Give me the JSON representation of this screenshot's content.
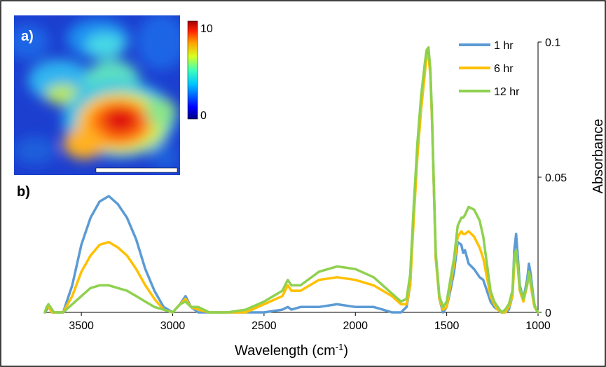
{
  "panel_labels": {
    "a": "a)",
    "b": "b)"
  },
  "colorbar": {
    "max_label": "10",
    "min_label": "0"
  },
  "chart_data": {
    "type": "line",
    "xlabel": "Wavelength (cm",
    "xlabel_sup": "-1",
    "xlabel_close": ")",
    "ylabel": "Absorbance",
    "xlim": [
      3700,
      1000
    ],
    "ylim": [
      0,
      0.1
    ],
    "x_ticks": [
      3500,
      3000,
      2500,
      2000,
      1500,
      1000
    ],
    "x_tick_labels": [
      "3500",
      "3000",
      "2500",
      "2000",
      "1500",
      "1000"
    ],
    "y_ticks": [
      0,
      0.05,
      0.1
    ],
    "y_tick_labels": [
      "0",
      "0.05",
      "0.1"
    ],
    "legend_position": "top-right",
    "colors": {
      "1 hr": "#5b9bd5",
      "6 hr": "#ffc000",
      "12 hr": "#8fd14f"
    },
    "series": [
      {
        "name": "1 hr",
        "x": [
          3700,
          3690,
          3680,
          3670,
          3660,
          3650,
          3600,
          3550,
          3500,
          3450,
          3400,
          3350,
          3300,
          3250,
          3200,
          3150,
          3100,
          3050,
          3000,
          2960,
          2930,
          2900,
          2860,
          2800,
          2700,
          2600,
          2500,
          2400,
          2370,
          2350,
          2300,
          2200,
          2100,
          2000,
          1900,
          1850,
          1800,
          1750,
          1720,
          1700,
          1680,
          1660,
          1640,
          1620,
          1610,
          1600,
          1590,
          1580,
          1570,
          1560,
          1540,
          1520,
          1500,
          1480,
          1460,
          1440,
          1420,
          1410,
          1400,
          1380,
          1350,
          1320,
          1300,
          1280,
          1260,
          1240,
          1220,
          1200,
          1180,
          1160,
          1140,
          1130,
          1120,
          1110,
          1100,
          1080,
          1060,
          1050,
          1040,
          1030,
          1020,
          1010,
          1000
        ],
        "y": [
          0.0,
          0.001,
          0.002,
          0.001,
          0.0,
          0.0,
          0.0,
          0.01,
          0.025,
          0.035,
          0.041,
          0.043,
          0.04,
          0.035,
          0.027,
          0.016,
          0.008,
          0.002,
          0.0,
          0.003,
          0.006,
          0.002,
          0.0,
          0.0,
          0.0,
          0.0,
          0.0,
          0.001,
          0.002,
          0.001,
          0.002,
          0.002,
          0.003,
          0.002,
          0.002,
          0.001,
          0.0,
          0.0,
          0.002,
          0.01,
          0.04,
          0.06,
          0.078,
          0.09,
          0.096,
          0.097,
          0.09,
          0.07,
          0.045,
          0.02,
          0.005,
          0.0,
          0.002,
          0.008,
          0.015,
          0.026,
          0.025,
          0.022,
          0.023,
          0.018,
          0.016,
          0.013,
          0.012,
          0.008,
          0.004,
          0.002,
          0.001,
          0.0,
          0.0,
          0.001,
          0.006,
          0.023,
          0.029,
          0.02,
          0.01,
          0.005,
          0.012,
          0.018,
          0.014,
          0.008,
          0.003,
          0.001,
          0.0
        ]
      },
      {
        "name": "6 hr",
        "x": [
          3700,
          3690,
          3680,
          3670,
          3660,
          3650,
          3600,
          3550,
          3500,
          3450,
          3400,
          3350,
          3300,
          3250,
          3200,
          3150,
          3100,
          3050,
          3000,
          2960,
          2930,
          2900,
          2860,
          2800,
          2700,
          2600,
          2500,
          2400,
          2370,
          2350,
          2300,
          2200,
          2100,
          2000,
          1900,
          1850,
          1800,
          1750,
          1720,
          1700,
          1680,
          1660,
          1640,
          1620,
          1610,
          1600,
          1590,
          1580,
          1570,
          1560,
          1540,
          1520,
          1500,
          1480,
          1460,
          1440,
          1420,
          1410,
          1400,
          1380,
          1350,
          1320,
          1300,
          1280,
          1260,
          1240,
          1220,
          1200,
          1180,
          1160,
          1140,
          1130,
          1120,
          1110,
          1100,
          1080,
          1060,
          1050,
          1040,
          1030,
          1020,
          1010,
          1000
        ],
        "y": [
          0.0,
          0.002,
          0.002,
          0.001,
          0.0,
          0.0,
          0.0,
          0.006,
          0.015,
          0.021,
          0.025,
          0.026,
          0.024,
          0.021,
          0.016,
          0.01,
          0.005,
          0.001,
          0.0,
          0.003,
          0.005,
          0.002,
          0.001,
          0.0,
          0.0,
          0.0,
          0.003,
          0.006,
          0.01,
          0.008,
          0.008,
          0.012,
          0.013,
          0.012,
          0.01,
          0.008,
          0.006,
          0.003,
          0.003,
          0.01,
          0.035,
          0.058,
          0.075,
          0.088,
          0.095,
          0.095,
          0.088,
          0.07,
          0.045,
          0.02,
          0.005,
          0.001,
          0.002,
          0.01,
          0.018,
          0.028,
          0.03,
          0.029,
          0.029,
          0.03,
          0.028,
          0.024,
          0.02,
          0.013,
          0.006,
          0.003,
          0.001,
          0.0,
          0.0,
          0.002,
          0.006,
          0.018,
          0.022,
          0.016,
          0.008,
          0.004,
          0.01,
          0.014,
          0.01,
          0.006,
          0.002,
          0.001,
          0.0
        ]
      },
      {
        "name": "12 hr",
        "x": [
          3700,
          3690,
          3680,
          3670,
          3660,
          3650,
          3600,
          3550,
          3500,
          3450,
          3400,
          3350,
          3300,
          3250,
          3200,
          3150,
          3100,
          3050,
          3000,
          2960,
          2930,
          2900,
          2860,
          2800,
          2700,
          2600,
          2500,
          2400,
          2370,
          2350,
          2300,
          2200,
          2100,
          2000,
          1900,
          1850,
          1800,
          1750,
          1720,
          1700,
          1680,
          1660,
          1640,
          1620,
          1610,
          1600,
          1590,
          1580,
          1570,
          1560,
          1540,
          1520,
          1500,
          1480,
          1460,
          1440,
          1420,
          1410,
          1400,
          1380,
          1350,
          1320,
          1300,
          1280,
          1260,
          1240,
          1220,
          1200,
          1180,
          1160,
          1140,
          1130,
          1120,
          1110,
          1100,
          1080,
          1060,
          1050,
          1040,
          1030,
          1020,
          1010,
          1000
        ],
        "y": [
          0.0,
          0.002,
          0.003,
          0.002,
          0.001,
          0.0,
          0.0,
          0.003,
          0.006,
          0.009,
          0.01,
          0.01,
          0.009,
          0.008,
          0.006,
          0.004,
          0.002,
          0.001,
          0.0,
          0.003,
          0.004,
          0.002,
          0.002,
          0.0,
          0.0,
          0.001,
          0.004,
          0.008,
          0.012,
          0.01,
          0.01,
          0.015,
          0.017,
          0.016,
          0.013,
          0.01,
          0.007,
          0.004,
          0.005,
          0.014,
          0.04,
          0.063,
          0.08,
          0.092,
          0.097,
          0.098,
          0.09,
          0.072,
          0.046,
          0.022,
          0.006,
          0.002,
          0.004,
          0.012,
          0.02,
          0.032,
          0.035,
          0.035,
          0.036,
          0.039,
          0.038,
          0.034,
          0.028,
          0.018,
          0.008,
          0.004,
          0.002,
          0.0,
          0.001,
          0.003,
          0.008,
          0.021,
          0.023,
          0.017,
          0.009,
          0.005,
          0.01,
          0.015,
          0.012,
          0.007,
          0.003,
          0.001,
          0.0
        ]
      }
    ]
  }
}
